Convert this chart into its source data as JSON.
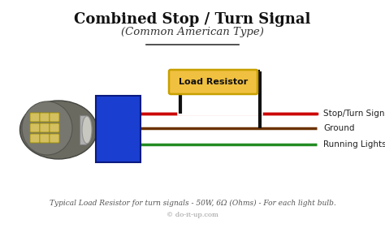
{
  "title": "Combined Stop / Turn Signal",
  "subtitle": "(Common American Type)",
  "footnote": "Typical Load Resistor for turn signals - 50W, 6Ω (Ohms) - For each light bulb.",
  "credit": "© do-it-up.com",
  "bg_color": "#ffffff",
  "title_color": "#111111",
  "subtitle_color": "#333333",
  "footnote_color": "#555555",
  "resistor_box_color": "#f0c040",
  "resistor_border_color": "#c8a000",
  "resistor_text": "Load Resistor",
  "connector_color": "#1a3fd0",
  "connector_edge_color": "#0a1a80",
  "wire_red_color": "#cc0000",
  "wire_brown_color": "#6b3200",
  "wire_green_color": "#228b22",
  "wire_black_color": "#111111",
  "label_stop": "Stop/Turn Signal",
  "label_ground": "Ground",
  "label_running": "Running Lights",
  "wire_lw": 2.5,
  "black_wire_lw": 3.0,
  "bulb_body_color": "#888880",
  "bulb_base_color": "#c0c0c0",
  "bulb_led_color": "#d4c060",
  "bulb_led_border": "#a09000"
}
